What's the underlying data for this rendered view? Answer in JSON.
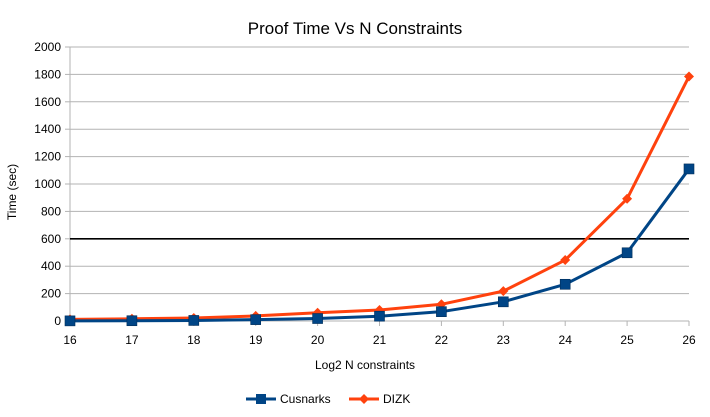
{
  "chart_data": {
    "type": "line",
    "title": "Proof Time Vs N Constraints",
    "xlabel": "Log2 N constraints",
    "ylabel": "Time (sec)",
    "categories": [
      "16",
      "17",
      "18",
      "19",
      "20",
      "21",
      "22",
      "23",
      "24",
      "25",
      "26"
    ],
    "ylim": [
      0,
      2000
    ],
    "yticks": [
      0,
      200,
      400,
      600,
      800,
      1000,
      1200,
      1400,
      1600,
      1800,
      2000
    ],
    "grid": true,
    "legend_position": "bottom",
    "reference_line": {
      "y": 600,
      "color": "#000000"
    },
    "series": [
      {
        "name": "Cusnarks",
        "color": "#004586",
        "marker": "square",
        "values": [
          1,
          2,
          4,
          10,
          18,
          35,
          68,
          140,
          268,
          498,
          1110
        ]
      },
      {
        "name": "DIZK",
        "color": "#ff420e",
        "marker": "diamond",
        "values": [
          12,
          16,
          22,
          37,
          60,
          80,
          122,
          218,
          445,
          892,
          1785
        ]
      }
    ]
  }
}
